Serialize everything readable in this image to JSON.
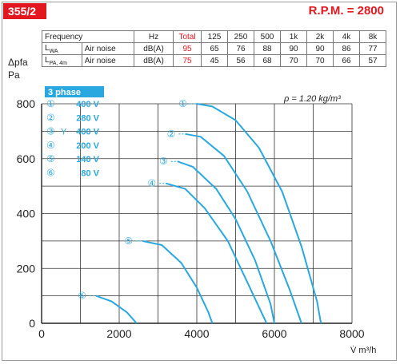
{
  "model": "355/2",
  "rpm": "R.P.M. = 2800",
  "noise_table": {
    "headers": [
      "Frequency",
      "",
      "Hz",
      "Total",
      "125",
      "250",
      "500",
      "1k",
      "2k",
      "4k",
      "8k"
    ],
    "rows": [
      {
        "symbol": "L",
        "sub": "WA",
        "label": "Air noise",
        "unit": "dB(A)",
        "values": [
          "95",
          "65",
          "76",
          "88",
          "90",
          "90",
          "86",
          "77"
        ]
      },
      {
        "symbol": "L",
        "sub": "PA, 4m",
        "label": "Air noise",
        "unit": "dB(A)",
        "values": [
          "75",
          "45",
          "56",
          "68",
          "70",
          "70",
          "66",
          "57"
        ]
      }
    ]
  },
  "legend": {
    "title": "3 phase",
    "items": [
      {
        "marker": "①",
        "star": "",
        "voltage": "400 V"
      },
      {
        "marker": "②",
        "star": "",
        "voltage": "280 V"
      },
      {
        "marker": "③",
        "star": "Y",
        "voltage": "400 V"
      },
      {
        "marker": "④",
        "star": "",
        "voltage": "200 V"
      },
      {
        "marker": "⑤",
        "star": "",
        "voltage": "140 V"
      },
      {
        "marker": "⑥",
        "star": "",
        "voltage": "80 V"
      }
    ]
  },
  "density_note": "ρ = 1.20 kg/m³",
  "colors": {
    "accent": "#e3171f",
    "curve": "#29a8df",
    "legend_bg": "#29a8df"
  },
  "chart_data": {
    "type": "line",
    "title": "",
    "xlabel": "V̇ m³/h",
    "ylabel_top": "Δpfa",
    "ylabel_unit": "Pa",
    "xlim": [
      0,
      8000
    ],
    "ylim": [
      0,
      800
    ],
    "x_ticks": [
      0,
      2000,
      4000,
      6000,
      8000
    ],
    "y_ticks": [
      0,
      200,
      400,
      600,
      800
    ],
    "grid": true,
    "series": [
      {
        "name": "①",
        "x": [
          4000,
          4400,
          5000,
          5600,
          6200,
          6700,
          7100,
          7200
        ],
        "y": [
          800,
          790,
          740,
          640,
          480,
          280,
          80,
          0
        ]
      },
      {
        "name": "②",
        "x": [
          3700,
          4100,
          4700,
          5300,
          5900,
          6400,
          6700
        ],
        "y": [
          690,
          680,
          610,
          480,
          300,
          120,
          0
        ]
      },
      {
        "name": "③",
        "x": [
          3500,
          3900,
          4500,
          5000,
          5500,
          5900,
          6000
        ],
        "y": [
          590,
          570,
          490,
          380,
          230,
          70,
          0
        ]
      },
      {
        "name": "④",
        "x": [
          3200,
          3700,
          4200,
          4800,
          5300,
          5700,
          5800
        ],
        "y": [
          510,
          490,
          420,
          300,
          150,
          30,
          0
        ]
      },
      {
        "name": "⑤",
        "x": [
          2600,
          3100,
          3600,
          4000,
          4300,
          4400
        ],
        "y": [
          300,
          285,
          220,
          130,
          40,
          0
        ]
      },
      {
        "name": "⑥",
        "x": [
          1400,
          1800,
          2200,
          2450
        ],
        "y": [
          100,
          80,
          40,
          0
        ]
      }
    ]
  }
}
